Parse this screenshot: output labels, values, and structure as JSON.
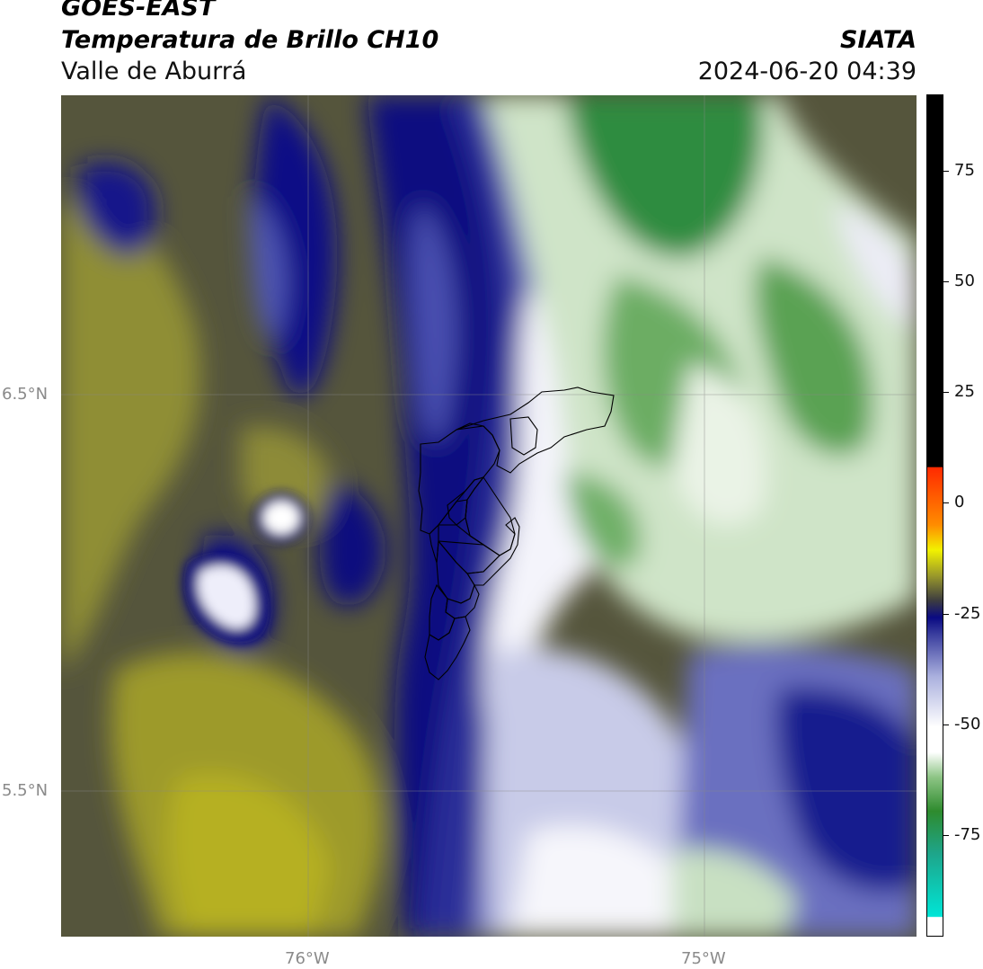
{
  "header": {
    "satellite": "GOES-EAST",
    "product": "Temperatura de Brillo CH10",
    "region": "Valle de Aburrá",
    "agency": "SIATA",
    "timestamp": "2024-06-20 04:39"
  },
  "map": {
    "lat_labels": [
      "6.5°N",
      "5.5°N"
    ],
    "lon_labels": [
      "76°W",
      "75°W"
    ],
    "gridlines": true
  },
  "colorbar": {
    "labels": [
      "75",
      "50",
      "25",
      "0",
      "-25",
      "-50",
      "-75"
    ],
    "colors": {
      "cyan": "#00e5d6",
      "green_dark": "#2e8b2e",
      "green_light": "#cfe6c8",
      "white": "#ffffff",
      "lavender": "#aab0de",
      "navy": "#0a0a82",
      "olive": "#9b9a2a",
      "yellow": "#f2f200",
      "orange": "#ff8c00",
      "red": "#ff2a00",
      "black": "#000000"
    }
  }
}
